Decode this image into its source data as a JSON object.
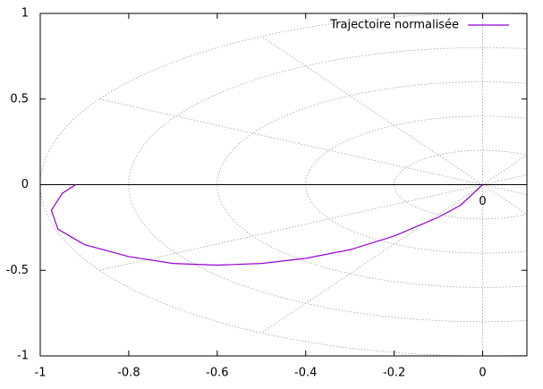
{
  "chart_data": {
    "type": "line",
    "x": [
      -0.92,
      -0.95,
      -0.975,
      -0.96,
      -0.9,
      -0.8,
      -0.7,
      -0.6,
      -0.5,
      -0.4,
      -0.3,
      -0.2,
      -0.1,
      -0.05,
      0
    ],
    "series": [
      {
        "name": "Trajectoire normalisée",
        "color": "#9400d3",
        "values": [
          0,
          -0.05,
          -0.15,
          -0.26,
          -0.35,
          -0.42,
          -0.46,
          -0.47,
          -0.46,
          -0.43,
          -0.38,
          -0.3,
          -0.19,
          -0.12,
          0
        ]
      }
    ],
    "xlim": [
      -1,
      0.1
    ],
    "ylim": [
      -1,
      1
    ],
    "xticks": [
      -1,
      -0.8,
      -0.6,
      -0.4,
      -0.2,
      0
    ],
    "yticks": [
      -1,
      -0.5,
      0,
      0.5,
      1
    ],
    "polar_grid": {
      "radii": [
        0.2,
        0.4,
        0.6,
        0.8,
        1
      ],
      "angle_step_deg": 30,
      "color": "#a0a0a0"
    },
    "origin_label": "0",
    "zeroaxis": true,
    "legend": "top-right"
  }
}
